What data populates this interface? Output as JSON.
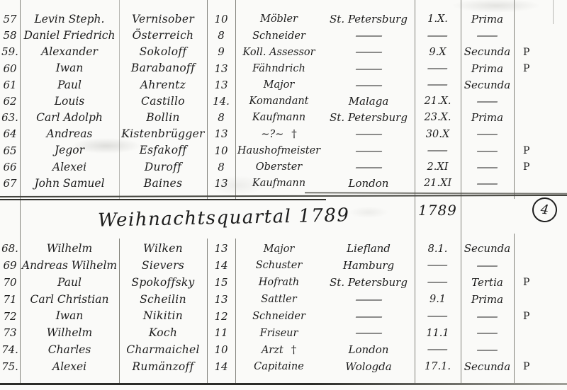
{
  "document": {
    "heading": "Weihnachtsquartal 1789",
    "year_in_date_column": "1789",
    "page_number": "4",
    "dash": "—",
    "colors": {
      "ink": "#1c1c1c",
      "paper": "#fafaf8",
      "rule_line": "#82827b"
    }
  },
  "sections": [
    {
      "rows": [
        {
          "n": "57",
          "first": "Levin Steph.",
          "last": "Vernisober",
          "age": "10",
          "occ": "Möbler",
          "cross": "",
          "city": "St. Petersburg",
          "date": "1.X.",
          "cls": "Prima",
          "p": ""
        },
        {
          "n": "58",
          "first": "Daniel Friedrich",
          "last": "Österreich",
          "age": "8",
          "occ": "Schneider",
          "cross": "",
          "city": "—",
          "date": "—",
          "cls": "—",
          "p": ""
        },
        {
          "n": "59.",
          "first": "Alexander",
          "last": "Sokoloff",
          "age": "9",
          "occ": "Koll. Assessor",
          "cross": "",
          "city": "—",
          "date": "9.X",
          "cls": "Secunda",
          "p": "P"
        },
        {
          "n": "60",
          "first": "Iwan",
          "last": "Barabanoff",
          "age": "13",
          "occ": "Fähndrich",
          "cross": "",
          "city": "—",
          "date": "—",
          "cls": "Prima",
          "p": "P"
        },
        {
          "n": "61",
          "first": "Paul",
          "last": "Ahrentz",
          "age": "13",
          "occ": "Major",
          "cross": "",
          "city": "—",
          "date": "—",
          "cls": "Secunda",
          "p": ""
        },
        {
          "n": "62",
          "first": "Louis",
          "last": "Castillo",
          "age": "14.",
          "occ": "Komandant",
          "cross": "",
          "city": "Malaga",
          "date": "21.X.",
          "cls": "—",
          "p": ""
        },
        {
          "n": "63.",
          "first": "Carl Adolph",
          "last": "Bollin",
          "age": "8",
          "occ": "Kaufmann",
          "cross": "",
          "city": "St. Petersburg",
          "date": "23.X.",
          "cls": "Prima",
          "p": ""
        },
        {
          "n": "64",
          "first": "Andreas",
          "last": "Kistenbrügger",
          "age": "13",
          "occ": "∼?∼",
          "cross": "†",
          "city": "—",
          "date": "30.X",
          "cls": "—",
          "p": ""
        },
        {
          "n": "65",
          "first": "Jegor",
          "last": "Esfakoff",
          "age": "10",
          "occ": "Haushofmeister",
          "cross": "",
          "city": "—",
          "date": "—",
          "cls": "—",
          "p": "P"
        },
        {
          "n": "66",
          "first": "Alexei",
          "last": "Duroff",
          "age": "8",
          "occ": "Oberster",
          "cross": "",
          "city": "—",
          "date": "2.XI",
          "cls": "—",
          "p": "P"
        },
        {
          "n": "67",
          "first": "John Samuel",
          "last": "Baines",
          "age": "13",
          "occ": "Kaufmann",
          "cross": "",
          "city": "London",
          "date": "21.XI",
          "cls": "—",
          "p": ""
        }
      ]
    },
    {
      "rows": [
        {
          "n": "68.",
          "first": "Wilhelm",
          "last": "Wilken",
          "age": "13",
          "occ": "Major",
          "cross": "",
          "city": "Liefland",
          "date": "8.1.",
          "cls": "Secunda",
          "p": ""
        },
        {
          "n": "69",
          "first": "Andreas Wilhelm",
          "last": "Sievers",
          "age": "14",
          "occ": "Schuster",
          "cross": "",
          "city": "Hamburg",
          "date": "—",
          "cls": "—",
          "p": ""
        },
        {
          "n": "70",
          "first": "Paul",
          "last": "Spokoffsky",
          "age": "15",
          "occ": "Hofrath",
          "cross": "",
          "city": "St. Petersburg",
          "date": "—",
          "cls": "Tertia",
          "p": "P"
        },
        {
          "n": "71",
          "first": "Carl Christian",
          "last": "Scheilin",
          "age": "13",
          "occ": "Sattler",
          "cross": "",
          "city": "—",
          "date": "9.1",
          "cls": "Prima",
          "p": ""
        },
        {
          "n": "72",
          "first": "Iwan",
          "last": "Nikitin",
          "age": "12",
          "occ": "Schneider",
          "cross": "",
          "city": "—",
          "date": "—",
          "cls": "—",
          "p": "P"
        },
        {
          "n": "73",
          "first": "Wilhelm",
          "last": "Koch",
          "age": "11",
          "occ": "Friseur",
          "cross": "",
          "city": "—",
          "date": "11.1",
          "cls": "—",
          "p": ""
        },
        {
          "n": "74.",
          "first": "Charles",
          "last": "Charmaichel",
          "age": "10",
          "occ": "Arzt",
          "cross": "†",
          "city": "London",
          "date": "—",
          "cls": "—",
          "p": ""
        },
        {
          "n": "75.",
          "first": "Alexei",
          "last": "Rumänzoff",
          "age": "14",
          "occ": "Capitaine",
          "cross": "",
          "city": "Wologda",
          "date": "17.1.",
          "cls": "Secunda",
          "p": "P"
        }
      ]
    }
  ]
}
